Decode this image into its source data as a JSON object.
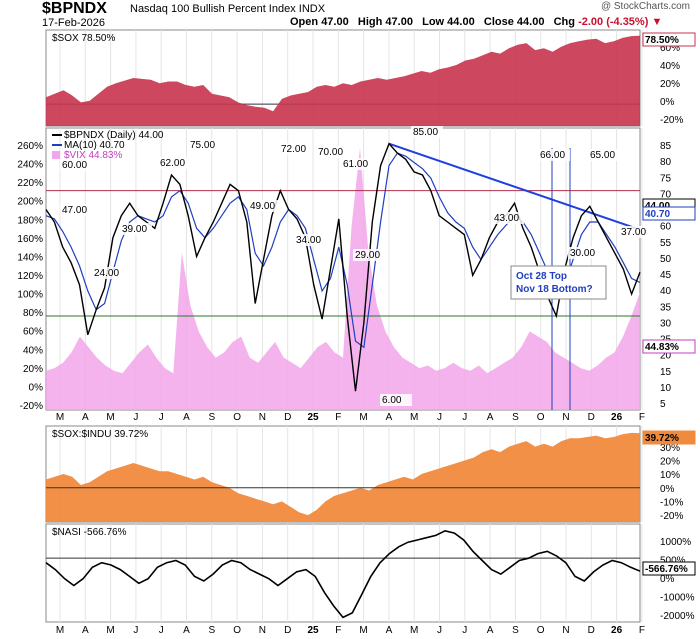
{
  "header": {
    "symbol": "$BPNDX",
    "name": "Nasdaq 100 Bullish Percent Index",
    "exchange": "INDX",
    "date": "17-Feb-2026",
    "open_label": "Open",
    "open": "47.00",
    "high_label": "High",
    "high": "47.00",
    "low_label": "Low",
    "low": "44.00",
    "close_label": "Close",
    "close": "44.00",
    "chg_label": "Chg",
    "chg": "-2.00 (-4.35%)",
    "logo": "@ StockCharts.com"
  },
  "colors": {
    "sox": "#c8344e",
    "bpndx": "#000000",
    "ma": "#1f3fbf",
    "vix": "#f2a6ea",
    "ratio": "#f08a3c",
    "nasi": "#000000",
    "upper_line": "#b0304a",
    "lower_line": "#2a7a2a",
    "trend_line": "#1f3fe0",
    "vline": "#1f3fbf",
    "annotation": "#1f3fbf"
  },
  "x_axis_labels": [
    "M",
    "A",
    "M",
    "J",
    "J",
    "A",
    "S",
    "O",
    "N",
    "D",
    "25",
    "F",
    "M",
    "A",
    "M",
    "J",
    "J",
    "A",
    "S",
    "O",
    "N",
    "D",
    "26",
    "F"
  ],
  "chart_data": [
    {
      "type": "area",
      "panel": "sox",
      "legend": "$SOX 78.50%",
      "last_value_label": "78.50%",
      "y_ticks": [
        "60%",
        "40%",
        "20%",
        "0%",
        "-20%"
      ],
      "ylim": [
        -25,
        85
      ],
      "series": [
        {
          "name": "$SOX",
          "values": [
            8,
            12,
            16,
            10,
            2,
            4,
            12,
            20,
            24,
            27,
            30,
            29,
            28,
            24,
            26,
            26,
            22,
            20,
            22,
            12,
            10,
            8,
            2,
            -1,
            -3,
            -4,
            -8,
            6,
            10,
            12,
            14,
            20,
            22,
            20,
            24,
            22,
            26,
            28,
            30,
            28,
            30,
            32,
            35,
            38,
            36,
            40,
            42,
            45,
            50,
            52,
            56,
            60,
            58,
            64,
            68,
            70,
            62,
            64,
            60,
            66,
            70,
            72,
            74,
            75,
            70,
            72,
            76,
            78,
            78.5
          ]
        }
      ]
    },
    {
      "type": "line",
      "panel": "bpndx",
      "legend": [
        "$BPNDX (Daily) 44.00",
        "MA(10) 40.70",
        "$VIX 44.83%"
      ],
      "y_ticks_left": [
        "260%",
        "240%",
        "220%",
        "200%",
        "180%",
        "160%",
        "140%",
        "120%",
        "100%",
        "80%",
        "60%",
        "40%",
        "20%",
        "0%",
        "-20%"
      ],
      "y_ticks_right": [
        "85",
        "80",
        "75",
        "70",
        "65",
        "60",
        "55",
        "50",
        "45",
        "40",
        "35",
        "30",
        "25",
        "20",
        "15",
        "10",
        "5"
      ],
      "last_value_labels": [
        "44.00",
        "40.70",
        "44.83%"
      ],
      "ylim": [
        0,
        90
      ],
      "reference_lines": [
        70,
        30
      ],
      "trend_line": {
        "from": 85,
        "to": 58
      },
      "annotation": "Oct 28 Top\nNov 18 Bottom?",
      "vertical_markers": [
        "Oct 28",
        "Nov 18"
      ],
      "data_labels": [
        "60.00",
        "47.00",
        "24.00",
        "39.00",
        "62.00",
        "75.00",
        "49.00",
        "72.00",
        "34.00",
        "70.00",
        "61.00",
        "29.00",
        "6.00",
        "85.00",
        "43.00",
        "66.00",
        "30.00",
        "65.00",
        "37.00"
      ],
      "series": [
        {
          "name": "$BPNDX",
          "values": [
            64,
            60,
            52,
            47,
            40,
            24,
            32,
            39,
            55,
            62,
            66,
            62,
            60,
            58,
            66,
            75,
            72,
            62,
            49,
            55,
            60,
            66,
            72,
            70,
            60,
            34,
            48,
            62,
            70,
            64,
            61,
            55,
            40,
            29,
            45,
            61,
            30,
            6,
            28,
            60,
            78,
            85,
            82,
            80,
            76,
            75,
            70,
            62,
            60,
            58,
            56,
            43,
            48,
            55,
            60,
            62,
            66,
            58,
            52,
            44,
            36,
            30,
            45,
            55,
            62,
            65,
            60,
            55,
            50,
            45,
            37,
            44
          ]
        },
        {
          "name": "MA(10)",
          "values": [
            62,
            61,
            57,
            52,
            46,
            38,
            32,
            34,
            44,
            54,
            60,
            62,
            61,
            60,
            62,
            68,
            70,
            66,
            58,
            55,
            58,
            62,
            66,
            68,
            64,
            50,
            46,
            52,
            60,
            64,
            62,
            58,
            48,
            38,
            42,
            52,
            40,
            22,
            20,
            40,
            60,
            78,
            82,
            81,
            79,
            77,
            74,
            68,
            63,
            60,
            58,
            52,
            48,
            52,
            56,
            59,
            62,
            60,
            56,
            50,
            44,
            38,
            40,
            48,
            56,
            60,
            60,
            56,
            52,
            47,
            42,
            40.7
          ]
        },
        {
          "name": "$VIX",
          "values": [
            15,
            16,
            18,
            22,
            28,
            24,
            20,
            17,
            15,
            14,
            18,
            22,
            25,
            20,
            16,
            14,
            60,
            40,
            30,
            24,
            20,
            22,
            26,
            28,
            20,
            18,
            22,
            26,
            20,
            18,
            16,
            20,
            24,
            26,
            22,
            20,
            70,
            100,
            60,
            40,
            30,
            24,
            20,
            18,
            16,
            17,
            15,
            16,
            18,
            16,
            15,
            17,
            14,
            16,
            18,
            20,
            24,
            30,
            28,
            26,
            22,
            20,
            18,
            16,
            15,
            17,
            20,
            22,
            28,
            36,
            44.83
          ]
        }
      ]
    },
    {
      "type": "area",
      "panel": "sox_indu",
      "legend": "$SOX:$INDU 39.72%",
      "last_value_label": "39.72%",
      "y_ticks": [
        "30%",
        "20%",
        "10%",
        "0%",
        "-10%",
        "-20%"
      ],
      "ylim": [
        -25,
        45
      ],
      "series": [
        {
          "name": "$SOX:$INDU",
          "values": [
            6,
            8,
            10,
            8,
            2,
            4,
            8,
            12,
            14,
            16,
            18,
            16,
            14,
            12,
            12,
            10,
            8,
            6,
            8,
            4,
            2,
            0,
            -4,
            -6,
            -8,
            -10,
            -12,
            -10,
            -14,
            -18,
            -20,
            -16,
            -10,
            -6,
            -4,
            -2,
            0,
            -2,
            2,
            4,
            6,
            8,
            6,
            10,
            12,
            14,
            16,
            18,
            20,
            22,
            26,
            28,
            26,
            30,
            32,
            34,
            30,
            32,
            30,
            34,
            36,
            36,
            37,
            38,
            36,
            37,
            39,
            40,
            39.72
          ]
        }
      ]
    },
    {
      "type": "line",
      "panel": "nasi",
      "legend": "$NASI -566.76%",
      "last_value_label": "-566.76%",
      "y_ticks": [
        "1000%",
        "500%",
        "0%",
        "-1000%",
        "-2000%"
      ],
      "ylim": [
        -2800,
        1500
      ],
      "reference_lines": [
        0
      ],
      "series": [
        {
          "name": "$NASI",
          "values": [
            -200,
            -500,
            -900,
            -1200,
            -900,
            -400,
            -200,
            -300,
            -500,
            -800,
            -1100,
            -900,
            -400,
            -200,
            -100,
            -300,
            -800,
            -1000,
            -700,
            -300,
            -100,
            -200,
            -500,
            -700,
            -900,
            -1200,
            -900,
            -600,
            -500,
            -800,
            -1500,
            -2100,
            -2600,
            -2400,
            -1600,
            -800,
            -200,
            200,
            500,
            700,
            800,
            900,
            1000,
            1200,
            1100,
            800,
            300,
            -100,
            -500,
            -700,
            -400,
            -100,
            0,
            200,
            300,
            100,
            -200,
            -800,
            -1000,
            -600,
            -300,
            -100,
            -200,
            -400,
            -566.76
          ]
        }
      ]
    }
  ]
}
